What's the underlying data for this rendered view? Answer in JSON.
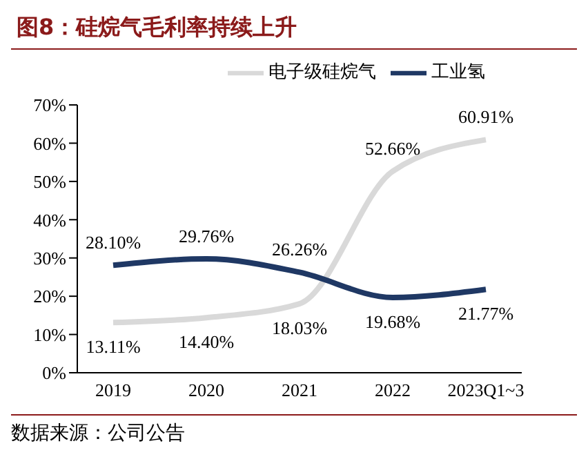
{
  "chart_data": {
    "type": "line",
    "title": "图8：硅烷气毛利率持续上升",
    "categories": [
      "2019",
      "2020",
      "2021",
      "2022",
      "2023Q1~3"
    ],
    "series": [
      {
        "name": "电子级硅烷气",
        "color": "#d9d9d9",
        "values": [
          13.11,
          14.4,
          18.03,
          52.66,
          60.91
        ],
        "value_labels": [
          "13.11%",
          "14.40%",
          "18.03%",
          "52.66%",
          "60.91%"
        ]
      },
      {
        "name": "工业氢",
        "color": "#1f3864",
        "values": [
          28.1,
          29.76,
          26.26,
          19.68,
          21.77
        ],
        "value_labels": [
          "28.10%",
          "29.76%",
          "26.26%",
          "19.68%",
          "21.77%"
        ]
      }
    ],
    "ylim": [
      0,
      70
    ],
    "yticks": [
      {
        "value": 0,
        "label": "0%"
      },
      {
        "value": 10,
        "label": "10%"
      },
      {
        "value": 20,
        "label": "20%"
      },
      {
        "value": 30,
        "label": "30%"
      },
      {
        "value": 40,
        "label": "40%"
      },
      {
        "value": 50,
        "label": "50%"
      },
      {
        "value": 60,
        "label": "60%"
      },
      {
        "value": 70,
        "label": "70%"
      }
    ],
    "grid": false,
    "legend": "top",
    "marker": "none",
    "line_style": "solid",
    "annotations": [
      "数据来源：公司公告"
    ]
  }
}
